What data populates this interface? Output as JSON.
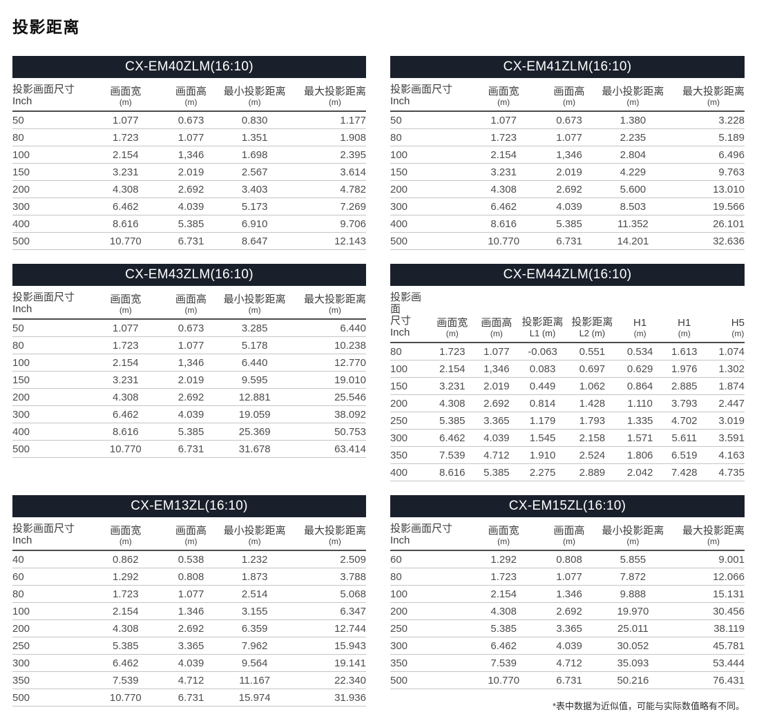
{
  "page": {
    "title": "投影距离",
    "footnote": "*表中数据为近似值，可能与实际数值略有不同。"
  },
  "colors": {
    "table_header_bg": "#1a202b",
    "table_header_text": "#ffffff",
    "data_text": "#4c4c4c",
    "divider_dark": "#4a4a4a",
    "divider_light": "#c4c4c4"
  },
  "tables": [
    {
      "title": "CX-EM40ZLM(16:10)",
      "columns": [
        {
          "l1": "投影画面尺寸",
          "l2": "Inch"
        },
        {
          "l1": "画面宽",
          "l2": "(m)"
        },
        {
          "l1": "画面高",
          "l2": "(m)"
        },
        {
          "l1": "最小投影距离",
          "l2": "(m)"
        },
        {
          "l1": "最大投影距离",
          "l2": "(m)"
        }
      ],
      "rows": [
        [
          "50",
          "1.077",
          "0.673",
          "0.830",
          "1.177"
        ],
        [
          "80",
          "1.723",
          "1.077",
          "1.351",
          "1.908"
        ],
        [
          "100",
          "2.154",
          "1,346",
          "1.698",
          "2.395"
        ],
        [
          "150",
          "3.231",
          "2.019",
          "2.567",
          "3.614"
        ],
        [
          "200",
          "4.308",
          "2.692",
          "3.403",
          "4.782"
        ],
        [
          "300",
          "6.462",
          "4.039",
          "5.173",
          "7.269"
        ],
        [
          "400",
          "8.616",
          "5.385",
          "6.910",
          "9.706"
        ],
        [
          "500",
          "10.770",
          "6.731",
          "8.647",
          "12.143"
        ]
      ]
    },
    {
      "title": "CX-EM41ZLM(16:10)",
      "columns": [
        {
          "l1": "投影画面尺寸",
          "l2": "Inch"
        },
        {
          "l1": "画面宽",
          "l2": "(m)"
        },
        {
          "l1": "画面高",
          "l2": "(m)"
        },
        {
          "l1": "最小投影距离",
          "l2": "(m)"
        },
        {
          "l1": "最大投影距离",
          "l2": "(m)"
        }
      ],
      "rows": [
        [
          "50",
          "1.077",
          "0.673",
          "1.380",
          "3.228"
        ],
        [
          "80",
          "1.723",
          "1.077",
          "2.235",
          "5.189"
        ],
        [
          "100",
          "2.154",
          "1,346",
          "2.804",
          "6.496"
        ],
        [
          "150",
          "3.231",
          "2.019",
          "4.229",
          "9.763"
        ],
        [
          "200",
          "4.308",
          "2.692",
          "5.600",
          "13.010"
        ],
        [
          "300",
          "6.462",
          "4.039",
          "8.503",
          "19.566"
        ],
        [
          "400",
          "8.616",
          "5.385",
          "11.352",
          "26.101"
        ],
        [
          "500",
          "10.770",
          "6.731",
          "14.201",
          "32.636"
        ]
      ]
    },
    {
      "title": "CX-EM43ZLM(16:10)",
      "columns": [
        {
          "l1": "投影画面尺寸",
          "l2": "Inch"
        },
        {
          "l1": "画面宽",
          "l2": "(m)"
        },
        {
          "l1": "画面高",
          "l2": "(m)"
        },
        {
          "l1": "最小投影距离",
          "l2": "(m)"
        },
        {
          "l1": "最大投影距离",
          "l2": "(m)"
        }
      ],
      "rows": [
        [
          "50",
          "1.077",
          "0.673",
          "3.285",
          "6.440"
        ],
        [
          "80",
          "1.723",
          "1.077",
          "5.178",
          "10.238"
        ],
        [
          "100",
          "2.154",
          "1,346",
          "6.440",
          "12.770"
        ],
        [
          "150",
          "3.231",
          "2.019",
          "9.595",
          "19.010"
        ],
        [
          "200",
          "4.308",
          "2.692",
          "12.881",
          "25.546"
        ],
        [
          "300",
          "6.462",
          "4.039",
          "19.059",
          "38.092"
        ],
        [
          "400",
          "8.616",
          "5.385",
          "25.369",
          "50.753"
        ],
        [
          "500",
          "10.770",
          "6.731",
          "31.678",
          "63.414"
        ]
      ]
    },
    {
      "title": "CX-EM44ZLM(16:10)",
      "columns": [
        {
          "l1": "投影画面",
          "l2": "尺寸Inch"
        },
        {
          "l1": "画面宽",
          "l2": "(m)"
        },
        {
          "l1": "画面高",
          "l2": "(m)"
        },
        {
          "l1": "投影距离",
          "l2": "L1 (m)"
        },
        {
          "l1": "投影距离",
          "l2": "L2 (m)"
        },
        {
          "l1": "H1",
          "l2": "(m)"
        },
        {
          "l1": "H1",
          "l2": "(m)"
        },
        {
          "l1": "H5",
          "l2": "(m)"
        }
      ],
      "rows": [
        [
          "80",
          "1.723",
          "1.077",
          "-0.063",
          "0.551",
          "0.534",
          "1.613",
          "1.074"
        ],
        [
          "100",
          "2.154",
          "1,346",
          "0.083",
          "0.697",
          "0.629",
          "1.976",
          "1.302"
        ],
        [
          "150",
          "3.231",
          "2.019",
          "0.449",
          "1.062",
          "0.864",
          "2.885",
          "1.874"
        ],
        [
          "200",
          "4.308",
          "2.692",
          "0.814",
          "1.428",
          "1.110",
          "3.793",
          "2.447"
        ],
        [
          "250",
          "5.385",
          "3.365",
          "1.179",
          "1.793",
          "1.335",
          "4.702",
          "3.019"
        ],
        [
          "300",
          "6.462",
          "4.039",
          "1.545",
          "2.158",
          "1.571",
          "5.611",
          "3.591"
        ],
        [
          "350",
          "7.539",
          "4.712",
          "1.910",
          "2.524",
          "1.806",
          "6.519",
          "4.163"
        ],
        [
          "400",
          "8.616",
          "5.385",
          "2.275",
          "2.889",
          "2.042",
          "7.428",
          "4.735"
        ]
      ]
    },
    {
      "title": "CX-EM13ZL(16:10)",
      "columns": [
        {
          "l1": "投影画面尺寸",
          "l2": "Inch"
        },
        {
          "l1": "画面宽",
          "l2": "(m)"
        },
        {
          "l1": "画面高",
          "l2": "(m)"
        },
        {
          "l1": "最小投影距离",
          "l2": "(m)"
        },
        {
          "l1": "最大投影距离",
          "l2": "(m)"
        }
      ],
      "rows": [
        [
          "40",
          "0.862",
          "0.538",
          "1.232",
          "2.509"
        ],
        [
          "60",
          "1.292",
          "0.808",
          "1.873",
          "3.788"
        ],
        [
          "80",
          "1.723",
          "1.077",
          "2.514",
          "5.068"
        ],
        [
          "100",
          "2.154",
          "1.346",
          "3.155",
          "6.347"
        ],
        [
          "200",
          "4.308",
          "2.692",
          "6.359",
          "12.744"
        ],
        [
          "250",
          "5.385",
          "3.365",
          "7.962",
          "15.943"
        ],
        [
          "300",
          "6.462",
          "4.039",
          "9.564",
          "19.141"
        ],
        [
          "350",
          "7.539",
          "4.712",
          "11.167",
          "22.340"
        ],
        [
          "500",
          "10.770",
          "6.731",
          "15.974",
          "31.936"
        ]
      ]
    },
    {
      "title": "CX-EM15ZL(16:10)",
      "columns": [
        {
          "l1": "投影画面尺寸",
          "l2": "Inch"
        },
        {
          "l1": "画面宽",
          "l2": "(m)"
        },
        {
          "l1": "画面高",
          "l2": "(m)"
        },
        {
          "l1": "最小投影距离",
          "l2": "(m)"
        },
        {
          "l1": "最大投影距离",
          "l2": "(m)"
        }
      ],
      "rows": [
        [
          "60",
          "1.292",
          "0.808",
          "5.855",
          "9.001"
        ],
        [
          "80",
          "1.723",
          "1.077",
          "7.872",
          "12.066"
        ],
        [
          "100",
          "2.154",
          "1.346",
          "9.888",
          "15.131"
        ],
        [
          "200",
          "4.308",
          "2.692",
          "19.970",
          "30.456"
        ],
        [
          "250",
          "5.385",
          "3.365",
          "25.011",
          "38.119"
        ],
        [
          "300",
          "6.462",
          "4.039",
          "30.052",
          "45.781"
        ],
        [
          "350",
          "7.539",
          "4.712",
          "35.093",
          "53.444"
        ],
        [
          "500",
          "10.770",
          "6.731",
          "50.216",
          "76.431"
        ]
      ]
    }
  ]
}
